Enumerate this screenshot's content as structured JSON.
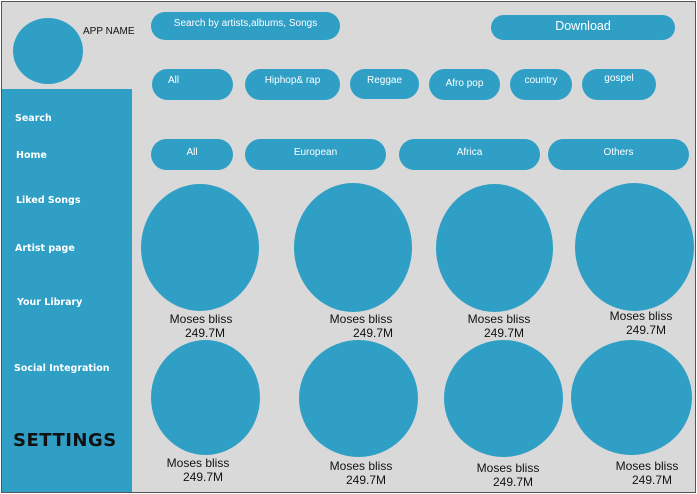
{
  "header": {
    "app_name": "APP NAME",
    "search_placeholder": "Search by artists,albums, Songs",
    "download_label": "Download"
  },
  "sidebar": {
    "items": [
      {
        "label": "Search"
      },
      {
        "label": "Home"
      },
      {
        "label": "Liked Songs"
      },
      {
        "label": "Artist page"
      },
      {
        "label": "Your Library"
      },
      {
        "label": "Social Integration"
      }
    ],
    "settings_label": "SETTINGS"
  },
  "genres": [
    "All",
    "Hiphop& rap",
    "Reggae",
    "Afro pop",
    "country",
    "gospel"
  ],
  "regions": [
    "All",
    "European",
    "Africa",
    "Others"
  ],
  "artists": [
    {
      "name": "Moses bliss",
      "listeners": "249.7M"
    },
    {
      "name": "Moses bliss",
      "listeners": "249.7M"
    },
    {
      "name": "Moses bliss",
      "listeners": "249.7M"
    },
    {
      "name": "Moses bliss",
      "listeners": "249.7M"
    },
    {
      "name": "Moses bliss",
      "listeners": "249.7M"
    },
    {
      "name": "Moses bliss",
      "listeners": "249.7M"
    },
    {
      "name": "Moses bliss",
      "listeners": "249.7M"
    },
    {
      "name": "Moses bliss",
      "listeners": "249.7M"
    }
  ],
  "colors": {
    "accent": "#2f9fc6",
    "background": "#d9d9d9",
    "text_dark": "#111111",
    "text_light": "#ffffff"
  }
}
